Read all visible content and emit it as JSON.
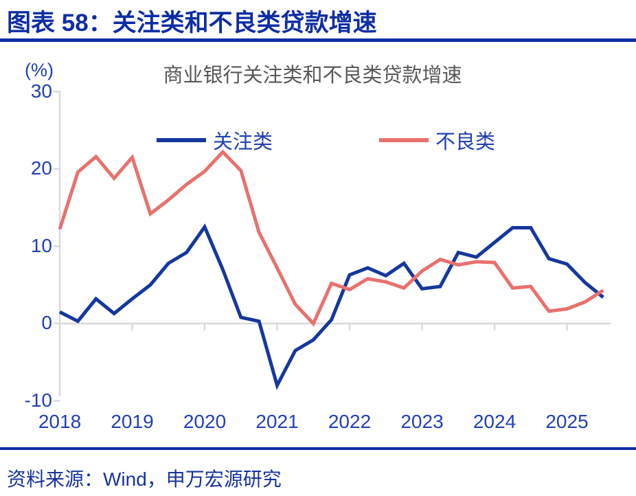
{
  "header": {
    "title": "图表 58：关注类和不良类贷款增速"
  },
  "source": {
    "text": "资料来源：Wind，申万宏源研究"
  },
  "colors": {
    "header_blue": "#0e2da4",
    "axis_text_blue": "#2140b4",
    "legend_text_blue": "#1f3fae",
    "series_blue": "#16379d",
    "series_red": "#e8716e",
    "title_gray": "#595757",
    "grid_gray": "#d9d9d9"
  },
  "chart_data": {
    "type": "line",
    "title": "商业银行关注类和不良类贷款增速",
    "unit_label": "(%)",
    "xlabel": "",
    "ylabel": "(%)",
    "ylim": [
      -10,
      30
    ],
    "y_ticks": [
      30,
      20,
      10,
      0,
      -10
    ],
    "x_tick_labels": [
      "2018",
      "2019",
      "2020",
      "2021",
      "2022",
      "2023",
      "2024",
      "2025"
    ],
    "grid": "zero-baseline-only",
    "legend_position": "top-inside",
    "x": [
      "2018Q1",
      "2018Q2",
      "2018Q3",
      "2018Q4",
      "2019Q1",
      "2019Q2",
      "2019Q3",
      "2019Q4",
      "2020Q1",
      "2020Q2",
      "2020Q3",
      "2020Q4",
      "2021Q1",
      "2021Q2",
      "2021Q3",
      "2021Q4",
      "2022Q1",
      "2022Q2",
      "2022Q3",
      "2022Q4",
      "2023Q1",
      "2023Q2",
      "2023Q3",
      "2023Q4",
      "2024Q1",
      "2024Q2",
      "2024Q3",
      "2024Q4",
      "2025Q1",
      "2025Q2",
      "2025Q3"
    ],
    "series": [
      {
        "name": "关注类",
        "key": "special-mention",
        "color": "#16379d",
        "values": [
          1.5,
          0.3,
          3.2,
          1.3,
          3.2,
          5.0,
          7.8,
          9.2,
          12.5,
          7.0,
          0.8,
          0.3,
          -8.0,
          -3.5,
          -2.1,
          0.5,
          6.3,
          7.2,
          6.2,
          7.8,
          4.5,
          4.8,
          9.2,
          8.6,
          10.5,
          12.4,
          12.4,
          8.4,
          7.7,
          5.3,
          3.4
        ]
      },
      {
        "name": "不良类",
        "key": "non-performing",
        "color": "#e8716e",
        "values": [
          12.2,
          19.6,
          21.6,
          18.8,
          21.5,
          14.2,
          16.0,
          18.0,
          19.7,
          22.2,
          19.8,
          11.8,
          7.2,
          2.5,
          0.0,
          5.2,
          4.4,
          5.8,
          5.4,
          4.6,
          6.8,
          8.3,
          7.6,
          8.0,
          7.9,
          4.6,
          4.8,
          1.6,
          1.9,
          2.8,
          4.3
        ]
      }
    ]
  }
}
